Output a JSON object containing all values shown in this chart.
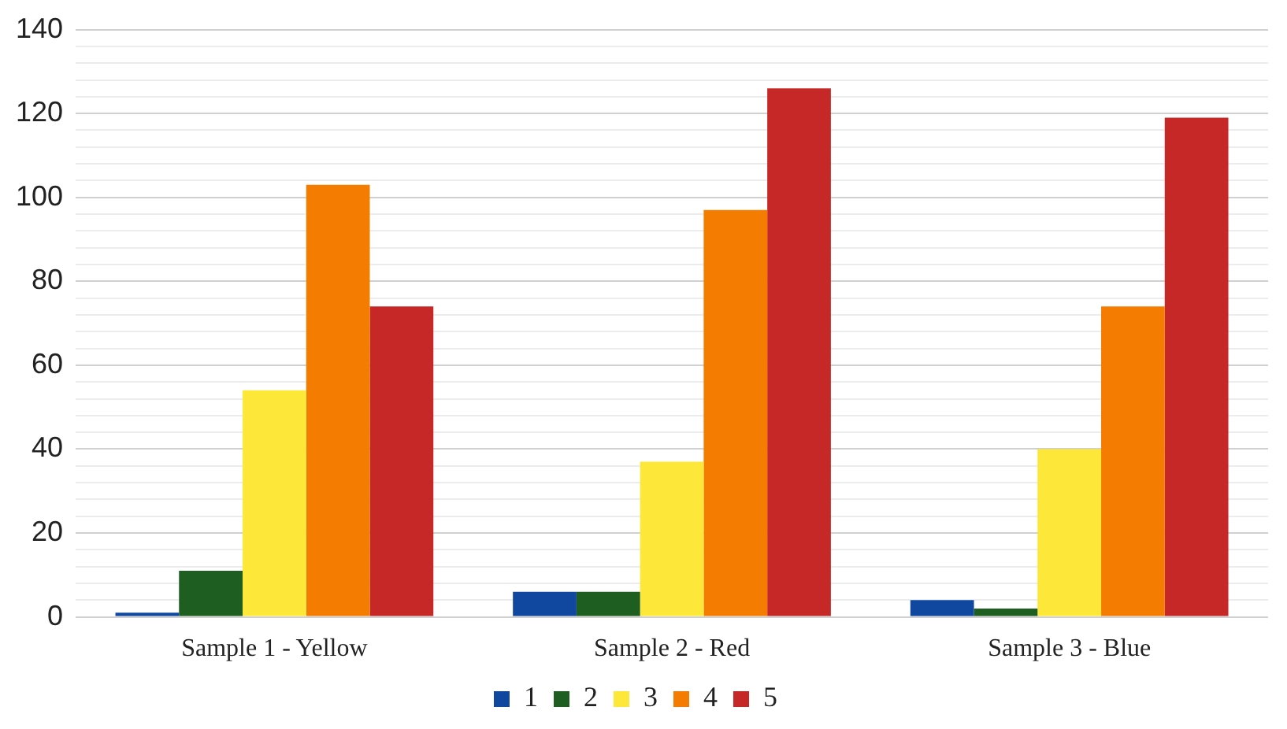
{
  "chart_data": {
    "type": "bar",
    "categories": [
      "Sample 1 - Yellow",
      "Sample 2 - Red",
      "Sample 3 - Blue"
    ],
    "series": [
      {
        "name": "1",
        "color": "#1048a0",
        "values": [
          1,
          6,
          4
        ]
      },
      {
        "name": "2",
        "color": "#1e5e20",
        "values": [
          11,
          6,
          2
        ]
      },
      {
        "name": "3",
        "color": "#fde83a",
        "values": [
          54,
          37,
          40
        ]
      },
      {
        "name": "4",
        "color": "#f47c00",
        "values": [
          103,
          97,
          74
        ]
      },
      {
        "name": "5",
        "color": "#c62828",
        "values": [
          74,
          126,
          119
        ]
      }
    ],
    "ylim": [
      0,
      140
    ],
    "yticks": [
      0,
      {
        "value": 4,
        "label": null
      },
      {
        "value": 8,
        "label": null
      },
      {
        "value": 12,
        "label": null
      },
      {
        "value": 16,
        "label": null
      },
      20,
      {
        "value": 24,
        "label": null
      },
      {
        "value": 28,
        "label": null
      },
      {
        "value": 32,
        "label": null
      },
      {
        "value": 36,
        "label": null
      },
      40,
      {
        "value": 44,
        "label": null
      },
      {
        "value": 48,
        "label": null
      },
      {
        "value": 52,
        "label": null
      },
      {
        "value": 56,
        "label": null
      },
      60,
      {
        "value": 64,
        "label": null
      },
      {
        "value": 68,
        "label": null
      },
      {
        "value": 72,
        "label": null
      },
      {
        "value": 76,
        "label": null
      },
      80,
      {
        "value": 84,
        "label": null
      },
      {
        "value": 88,
        "label": null
      },
      {
        "value": 92,
        "label": null
      },
      {
        "value": 96,
        "label": null
      },
      100,
      {
        "value": 104,
        "label": null
      },
      {
        "value": 108,
        "label": null
      },
      {
        "value": 112,
        "label": null
      },
      {
        "value": 116,
        "label": null
      },
      120,
      {
        "value": 124,
        "label": null
      },
      {
        "value": 128,
        "label": null
      },
      {
        "value": 132,
        "label": null
      },
      {
        "value": 136,
        "label": null
      },
      140
    ],
    "grid": "y",
    "legend": "bottom"
  }
}
